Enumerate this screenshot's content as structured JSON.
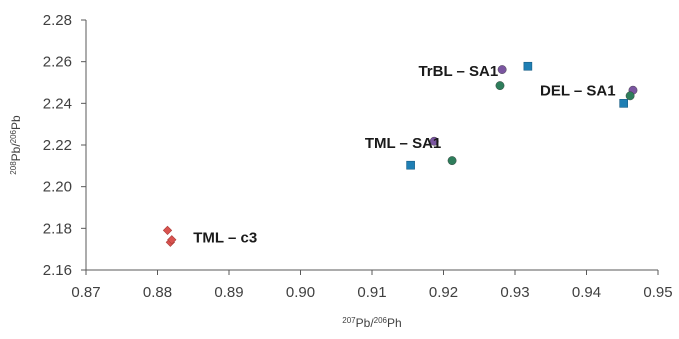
{
  "chart_data": {
    "type": "scatter",
    "title": "",
    "xlabel_parts": {
      "sup1": "207",
      "base1": "Pb/",
      "sup2": "206",
      "base2": "Ph"
    },
    "ylabel_parts": {
      "sup1": "208",
      "base1": "Pb/",
      "sup2": "206",
      "base2": "Pb"
    },
    "xlim": [
      0.87,
      0.95
    ],
    "ylim": [
      2.16,
      2.28
    ],
    "x_ticks": [
      "0.87",
      "0.88",
      "0.89",
      "0.90",
      "0.91",
      "0.92",
      "0.93",
      "0.94",
      "0.95"
    ],
    "y_ticks": [
      "2.16",
      "2.18",
      "2.20",
      "2.22",
      "2.24",
      "2.26",
      "2.28"
    ],
    "grid": false,
    "legend": "none",
    "series": [
      {
        "marker": "diamond",
        "color": "#d9534f",
        "points": [
          [
            0.8814,
            2.179
          ],
          [
            0.8818,
            2.1733
          ],
          [
            0.882,
            2.1745
          ]
        ]
      },
      {
        "marker": "square",
        "color": "#1f7fb4",
        "points": [
          [
            0.9154,
            2.2103
          ],
          [
            0.9318,
            2.2578
          ],
          [
            0.9452,
            2.24
          ]
        ]
      },
      {
        "marker": "circle",
        "color": "#7a55a0",
        "points": [
          [
            0.9187,
            2.2218
          ],
          [
            0.9282,
            2.2562
          ],
          [
            0.9465,
            2.2463
          ]
        ]
      },
      {
        "marker": "circle",
        "color": "#2e7d5b",
        "points": [
          [
            0.9212,
            2.2125
          ],
          [
            0.9279,
            2.2485
          ],
          [
            0.9461,
            2.2436
          ]
        ]
      }
    ],
    "annotations": [
      {
        "text": "TML – c3",
        "x": 0.885,
        "y": 2.1755
      },
      {
        "text": "TML – SA1",
        "x": 0.909,
        "y": 2.221
      },
      {
        "text": "TrBL – SA1",
        "x": 0.9165,
        "y": 2.2555
      },
      {
        "text": "DEL – SA1",
        "x": 0.9335,
        "y": 2.2462
      }
    ]
  }
}
